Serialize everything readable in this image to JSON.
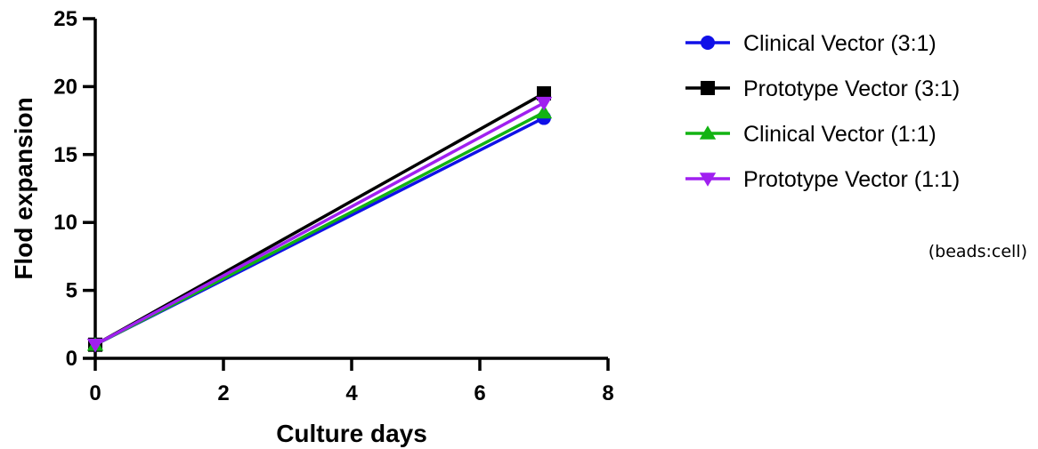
{
  "chart_data": {
    "type": "line",
    "xlabel": "Culture days",
    "ylabel": "Flod expansion",
    "xlim": [
      0,
      8
    ],
    "ylim": [
      0,
      25
    ],
    "x_ticks": [
      0,
      2,
      4,
      6,
      8
    ],
    "y_ticks": [
      0,
      5,
      10,
      15,
      20,
      25
    ],
    "grid": false,
    "legend_position": "right",
    "legend_note": "(beads:cell)",
    "series": [
      {
        "name": "Clinical Vector (3:1)",
        "color": "#1010e8",
        "marker": "circle",
        "x": [
          0,
          7
        ],
        "y": [
          1,
          17.7
        ]
      },
      {
        "name": "Prototype Vector (3:1)",
        "color": "#000000",
        "marker": "square",
        "x": [
          0,
          7
        ],
        "y": [
          1,
          19.5
        ]
      },
      {
        "name": "Clinical Vector (1:1)",
        "color": "#12b312",
        "marker": "triangle-up",
        "x": [
          0,
          7
        ],
        "y": [
          1,
          18.1
        ]
      },
      {
        "name": "Prototype Vector (1:1)",
        "color": "#a020f0",
        "marker": "triangle-down",
        "x": [
          0,
          7
        ],
        "y": [
          1,
          18.8
        ]
      }
    ]
  }
}
